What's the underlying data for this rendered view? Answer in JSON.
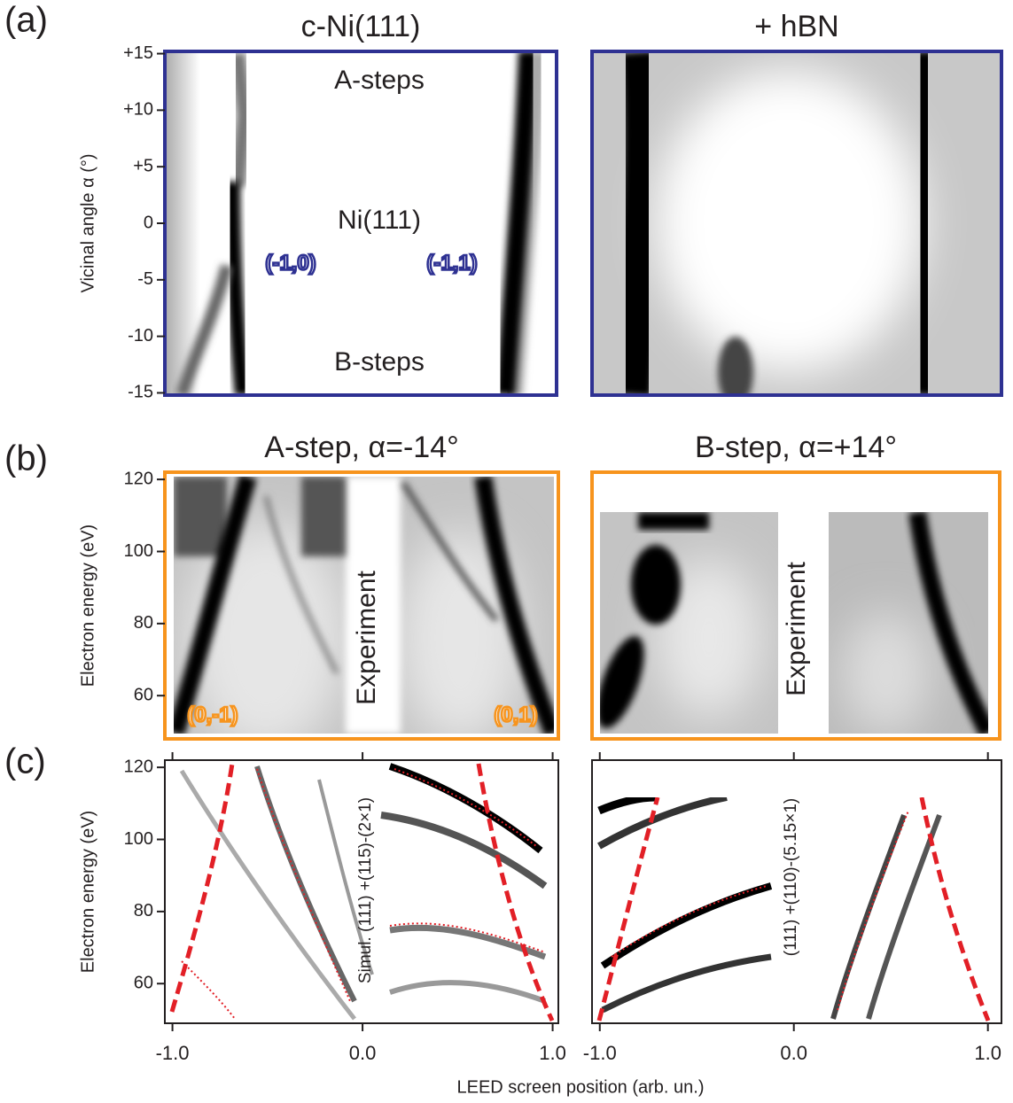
{
  "chart_data": [
    {
      "type": "image",
      "panel_label": "(a)",
      "title": "c-Ni(111)",
      "ylabel": "Vicinal angle α (°)",
      "frame_color": "#2e3192",
      "ylim": [
        -15.2,
        15.2
      ],
      "yticks": [
        {
          "value": 15,
          "label": "+15"
        },
        {
          "value": 10,
          "label": "+10"
        },
        {
          "value": 5,
          "label": "+5"
        },
        0,
        -5,
        -10,
        -15
      ],
      "annotations": [
        {
          "text": "A-steps",
          "color": "#231f20"
        },
        {
          "text": "Ni(111)",
          "color": "#231f20"
        },
        {
          "text": "B-steps",
          "color": "#231f20"
        },
        {
          "text": "(-1,0)",
          "color": "#2e3192"
        },
        {
          "text": "(-1,1)",
          "color": "#2e3192"
        }
      ]
    },
    {
      "type": "image",
      "title": "+ hBN",
      "frame_color": "#2e3192"
    },
    {
      "type": "image",
      "panel_label": "(b)",
      "title": "A-step, α=-14°",
      "ylabel": "Electron energy (eV)",
      "frame_color": "#f7941d",
      "ylim": [
        48,
        122
      ],
      "yticks": [
        60,
        80,
        100,
        120
      ],
      "annotations": [
        {
          "text": "Experiment",
          "color": "#231f20"
        },
        {
          "text": "(0,-1)",
          "color": "#f7941d"
        },
        {
          "text": "(0,1)",
          "color": "#f7941d"
        }
      ]
    },
    {
      "type": "image",
      "title": "B-step, α=+14°",
      "frame_color": "#f7941d",
      "annotations": [
        {
          "text": "Experiment",
          "color": "#231f20"
        }
      ]
    },
    {
      "type": "image",
      "panel_label": "(c)",
      "ylabel": "Electron energy (eV)",
      "frame_color": "#231f20",
      "ylim": [
        49,
        122
      ],
      "yticks": [
        60,
        80,
        100,
        120
      ],
      "xlim": [
        -1.04,
        1.03
      ],
      "xticks": [
        {
          "value": -1,
          "label": "-1.0"
        },
        {
          "value": 0,
          "label": "0.0"
        },
        {
          "value": 1,
          "label": "1.0"
        }
      ],
      "xlabel": "LEED screen position (arb. un.)",
      "annotations": [
        {
          "text": "Simul. (111) +(115)-(2×1)",
          "color": "#231f20"
        }
      ]
    },
    {
      "type": "image",
      "frame_color": "#231f20",
      "xlim": [
        -1.04,
        1.07
      ],
      "xticks": [
        {
          "value": -1,
          "label": "-1.0"
        },
        {
          "value": 0,
          "label": "0.0"
        },
        {
          "value": 1,
          "label": "1.0"
        }
      ],
      "annotations": [
        {
          "text": "(111) +(110)-(5.15×1)",
          "color": "#231f20"
        }
      ]
    }
  ]
}
